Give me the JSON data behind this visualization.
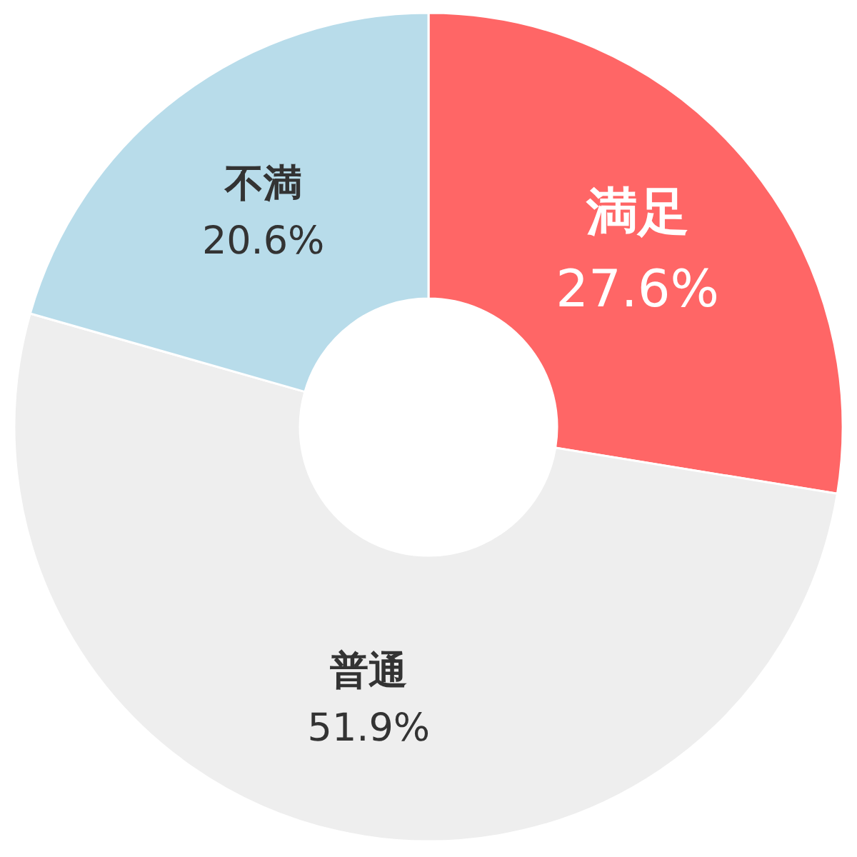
{
  "chart_data": {
    "type": "donut",
    "categories": [
      "満足",
      "普通",
      "不満"
    ],
    "values": [
      27.6,
      51.9,
      20.6
    ],
    "colors": [
      "#ff6666",
      "#eeeeee",
      "#b8dcea"
    ],
    "value_labels": [
      "27.6%",
      "51.9%",
      "20.6%"
    ]
  }
}
